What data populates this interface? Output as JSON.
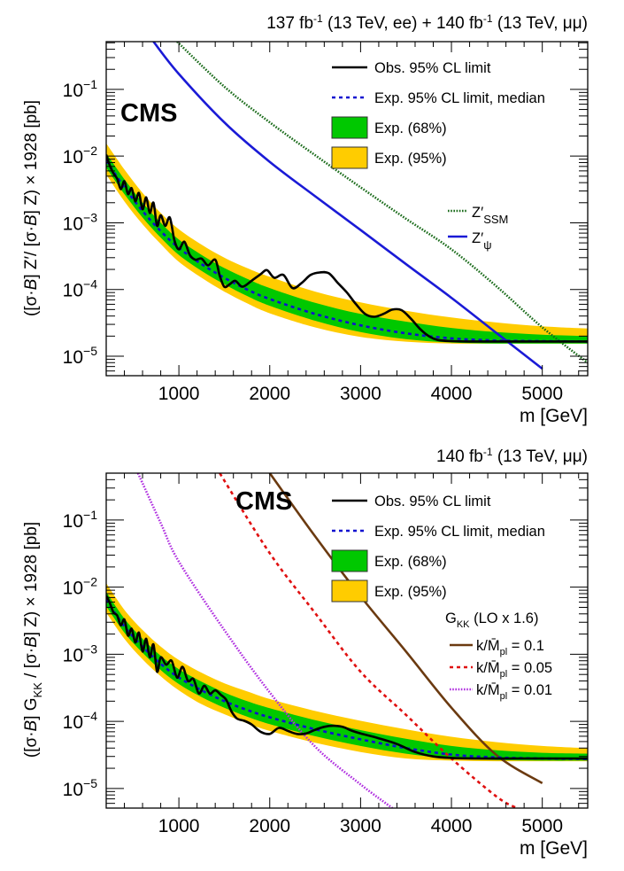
{
  "chart_data": [
    {
      "type": "line",
      "experiment_label": "CMS",
      "title": "137 fb-1 (13 TeV, ee) + 140 fb-1 (13 TeV, μμ)",
      "title_parts": {
        "a": "137 fb",
        "a_sup": "-1",
        "b": " (13 TeV, ee) + 140 fb",
        "b_sup": "-1",
        "c": " (13 TeV, μμ)"
      },
      "xlabel": "m [GeV]",
      "ylabel": "([σ·B] Z′/ [σ·B] Z) × 1928 [pb]",
      "xlim": [
        200,
        5500
      ],
      "ylim": [
        5.1e-06,
        0.52
      ],
      "yscale": "log",
      "xticks": [
        1000,
        2000,
        3000,
        4000,
        5000
      ],
      "xtick_labels": [
        "1000",
        "2000",
        "3000",
        "4000",
        "5000"
      ],
      "yticks": [
        1e-05,
        0.0001,
        0.001,
        0.01,
        0.1
      ],
      "ytick_labels": [
        {
          "base": "10",
          "exp": "−5"
        },
        {
          "base": "10",
          "exp": "−4"
        },
        {
          "base": "10",
          "exp": "−3"
        },
        {
          "base": "10",
          "exp": "−2"
        },
        {
          "base": "10",
          "exp": "−1"
        }
      ],
      "legend": [
        {
          "label": "Obs. 95% CL limit",
          "style": "solid",
          "color": "#000000"
        },
        {
          "label": "Exp. 95% CL limit, median",
          "style": "dashed",
          "color": "#1010d0"
        },
        {
          "label": "Exp. (68%)",
          "style": "box",
          "color": "#00c800"
        },
        {
          "label": "Exp. (95%)",
          "style": "box",
          "color": "#ffcc00"
        }
      ],
      "model_legend": [
        {
          "label": "Z′",
          "sub": "SSM",
          "style": "dotted",
          "color": "#1a6b1a"
        },
        {
          "label": "Z′",
          "sub": "ψ",
          "style": "solid",
          "color": "#1a1ad6"
        }
      ],
      "expected": {
        "x": [
          200,
          400,
          600,
          800,
          1000,
          1250,
          1500,
          1750,
          2000,
          2500,
          3000,
          3500,
          4000,
          4500,
          5000,
          5500
        ],
        "median": [
          0.0085,
          0.0034,
          0.0015,
          0.00075,
          0.00042,
          0.00024,
          0.00015,
          0.0001,
          7.2e-05,
          4.3e-05,
          2.9e-05,
          2.2e-05,
          1.85e-05,
          1.72e-05,
          1.68e-05,
          1.66e-05
        ],
        "band68_lo": [
          0.0067,
          0.0027,
          0.0012,
          0.0006,
          0.00033,
          0.00019,
          0.00012,
          8e-05,
          5.7e-05,
          3.4e-05,
          2.3e-05,
          1.8e-05,
          1.6e-05,
          1.55e-05,
          1.55e-05,
          1.55e-05
        ],
        "band68_hi": [
          0.011,
          0.0045,
          0.002,
          0.001,
          0.00056,
          0.00033,
          0.00021,
          0.000145,
          0.000105,
          6.3e-05,
          4.3e-05,
          3.3e-05,
          2.65e-05,
          2.3e-05,
          2.1e-05,
          2e-05
        ],
        "band95_lo": [
          0.0053,
          0.0021,
          0.00095,
          0.00048,
          0.00026,
          0.00015,
          9.3e-05,
          6.2e-05,
          4.4e-05,
          2.7e-05,
          1.95e-05,
          1.65e-05,
          1.55e-05,
          1.55e-05,
          1.55e-05,
          1.55e-05
        ],
        "band95_hi": [
          0.0155,
          0.0063,
          0.0028,
          0.0014,
          0.0008,
          0.00047,
          0.0003,
          0.00021,
          0.000155,
          9.3e-05,
          6.4e-05,
          4.8e-05,
          3.8e-05,
          3.2e-05,
          2.8e-05,
          2.6e-05
        ]
      },
      "observed": {
        "x": [
          200,
          240,
          280,
          320,
          360,
          400,
          440,
          480,
          520,
          560,
          600,
          640,
          680,
          720,
          760,
          800,
          850,
          900,
          950,
          1000,
          1060,
          1120,
          1180,
          1250,
          1320,
          1400,
          1450,
          1500,
          1560,
          1620,
          1700,
          1800,
          1900,
          1970,
          2050,
          2150,
          2250,
          2350,
          2450,
          2550,
          2650,
          2750,
          2850,
          2950,
          3050,
          3150,
          3250,
          3350,
          3450,
          3550,
          3650,
          3750,
          3850,
          4000,
          4200,
          4500,
          5000,
          5500
        ],
        "y": [
          0.0105,
          0.0072,
          0.0055,
          0.0046,
          0.0032,
          0.0042,
          0.0027,
          0.0033,
          0.0021,
          0.0028,
          0.0016,
          0.0024,
          0.0014,
          0.002,
          0.0009,
          0.0013,
          0.0009,
          0.0012,
          0.00055,
          0.0004,
          0.00052,
          0.00033,
          0.00028,
          0.00029,
          0.00023,
          0.00028,
          0.00016,
          0.00011,
          0.00012,
          0.000135,
          0.00011,
          0.000135,
          0.00017,
          0.000195,
          0.00015,
          0.000165,
          0.000105,
          0.000125,
          0.000165,
          0.00018,
          0.000175,
          0.000125,
          9e-05,
          6e-05,
          4.3e-05,
          3.9e-05,
          4.3e-05,
          5e-05,
          4.9e-05,
          3.7e-05,
          2.6e-05,
          2e-05,
          1.75e-05,
          1.68e-05,
          1.66e-05,
          1.66e-05,
          1.66e-05,
          1.66e-05
        ]
      },
      "models": [
        {
          "name": "Z′_SSM",
          "color": "#1a6b1a",
          "style": "dotted",
          "x": [
            980,
            1500,
            2000,
            2500,
            3000,
            3500,
            4000,
            4500,
            5000,
            5500
          ],
          "y": [
            0.52,
            0.11,
            0.032,
            0.0103,
            0.0034,
            0.00115,
            0.0004,
            0.00011,
            2.7e-05,
            8e-06
          ]
        },
        {
          "name": "Z′_ψ",
          "color": "#1a1ad6",
          "style": "solid",
          "x": [
            720,
            1000,
            1500,
            2000,
            2500,
            3000,
            3500,
            4000,
            4500,
            5000
          ],
          "y": [
            0.52,
            0.17,
            0.032,
            0.0082,
            0.0025,
            0.00078,
            0.00024,
            7.5e-05,
            2.2e-05,
            6.5e-06
          ]
        }
      ]
    },
    {
      "type": "line",
      "experiment_label": "CMS",
      "title": "140 fb-1 (13 TeV, μμ)",
      "title_parts": {
        "a": "140 fb",
        "a_sup": "-1",
        "b": " (13 TeV, μμ)"
      },
      "xlabel": "m [GeV]",
      "ylabel": "([σ·B] G_KK / [σ·B] Z) × 1928 [pb]",
      "xlim": [
        200,
        5500
      ],
      "ylim": [
        5.1e-06,
        0.5
      ],
      "yscale": "log",
      "xticks": [
        1000,
        2000,
        3000,
        4000,
        5000
      ],
      "xtick_labels": [
        "1000",
        "2000",
        "3000",
        "4000",
        "5000"
      ],
      "yticks": [
        1e-05,
        0.0001,
        0.001,
        0.01,
        0.1
      ],
      "ytick_labels": [
        {
          "base": "10",
          "exp": "−5"
        },
        {
          "base": "10",
          "exp": "−4"
        },
        {
          "base": "10",
          "exp": "−3"
        },
        {
          "base": "10",
          "exp": "−2"
        },
        {
          "base": "10",
          "exp": "−1"
        }
      ],
      "legend": [
        {
          "label": "Obs. 95% CL limit",
          "style": "solid",
          "color": "#000000"
        },
        {
          "label": "Exp. 95% CL limit, median",
          "style": "dashed",
          "color": "#1010d0"
        },
        {
          "label": "Exp. (68%)",
          "style": "box",
          "color": "#00c800"
        },
        {
          "label": "Exp. (95%)",
          "style": "box",
          "color": "#ffcc00"
        }
      ],
      "model_legend_header": {
        "label": "G",
        "sub": "KK",
        "rest": " (LO x 1.6)"
      },
      "model_legend": [
        {
          "label": "k/M̄",
          "sub": "pl",
          "value": " = 0.1",
          "style": "solid",
          "color": "#6b3a10"
        },
        {
          "label": "k/M̄",
          "sub": "pl",
          "value": " = 0.05",
          "style": "dashed",
          "color": "#e01010"
        },
        {
          "label": "k/M̄",
          "sub": "pl",
          "value": " = 0.01",
          "style": "dotted",
          "color": "#b030e0"
        }
      ],
      "expected": {
        "x": [
          200,
          400,
          600,
          800,
          1000,
          1250,
          1500,
          1750,
          2000,
          2500,
          3000,
          3500,
          4000,
          4500,
          5000,
          5500
        ],
        "median": [
          0.0065,
          0.0026,
          0.0013,
          0.00072,
          0.00045,
          0.00029,
          0.0002,
          0.000148,
          0.000115,
          7.6e-05,
          5.4e-05,
          4e-05,
          3.2e-05,
          2.9e-05,
          2.8e-05,
          2.75e-05
        ],
        "band68_lo": [
          0.0052,
          0.0021,
          0.00105,
          0.00058,
          0.00036,
          0.00023,
          0.00016,
          0.000118,
          9.1e-05,
          6e-05,
          4.3e-05,
          3.3e-05,
          2.8e-05,
          2.65e-05,
          2.6e-05,
          2.6e-05
        ],
        "band68_hi": [
          0.0085,
          0.0034,
          0.0017,
          0.00095,
          0.0006,
          0.00039,
          0.00027,
          0.0002,
          0.000157,
          0.000104,
          7.4e-05,
          5.5e-05,
          4.3e-05,
          3.7e-05,
          3.4e-05,
          3.3e-05
        ],
        "band95_lo": [
          0.0042,
          0.0017,
          0.00084,
          0.00047,
          0.00029,
          0.00018,
          0.000128,
          9.4e-05,
          7.2e-05,
          4.8e-05,
          3.5e-05,
          2.8e-05,
          2.6e-05,
          2.55e-05,
          2.55e-05,
          2.55e-05
        ],
        "band95_hi": [
          0.0115,
          0.0046,
          0.0023,
          0.0013,
          0.00082,
          0.00053,
          0.00037,
          0.00028,
          0.000215,
          0.000143,
          0.000102,
          7.6e-05,
          5.9e-05,
          4.9e-05,
          4.3e-05,
          4e-05
        ]
      },
      "observed": {
        "x": [
          200,
          240,
          280,
          320,
          360,
          400,
          440,
          480,
          520,
          560,
          600,
          640,
          680,
          720,
          760,
          800,
          860,
          920,
          980,
          1040,
          1100,
          1160,
          1220,
          1280,
          1340,
          1400,
          1460,
          1520,
          1580,
          1640,
          1720,
          1800,
          1900,
          2000,
          2100,
          2200,
          2300,
          2400,
          2500,
          2600,
          2700,
          2800,
          2900,
          3000,
          3200,
          3400,
          3600,
          3800,
          4000,
          4300,
          4700,
          5000,
          5500
        ],
        "y": [
          0.0075,
          0.0058,
          0.0042,
          0.0038,
          0.0027,
          0.0033,
          0.0019,
          0.0024,
          0.0015,
          0.0021,
          0.0011,
          0.0017,
          0.0009,
          0.0014,
          0.00055,
          0.0009,
          0.0007,
          0.0008,
          0.00045,
          0.00065,
          0.0004,
          0.00043,
          0.00026,
          0.00034,
          0.00026,
          0.00029,
          0.00025,
          0.00021,
          0.00014,
          0.00011,
          0.000102,
          9e-05,
          7e-05,
          6.5e-05,
          8e-05,
          7.2e-05,
          6.5e-05,
          6.6e-05,
          7.5e-05,
          8.3e-05,
          8.6e-05,
          8.3e-05,
          7.3e-05,
          6.6e-05,
          5.6e-05,
          4.6e-05,
          3.5e-05,
          3e-05,
          2.85e-05,
          2.8e-05,
          2.8e-05,
          2.8e-05,
          2.8e-05
        ]
      },
      "models": [
        {
          "name": "k/M̄pl = 0.1",
          "color": "#6b3a10",
          "style": "solid",
          "x": [
            2000,
            2500,
            3000,
            3500,
            4000,
            4500,
            5000
          ],
          "y": [
            0.5,
            0.057,
            0.0073,
            0.0011,
            0.00016,
            3.1e-05,
            1.2e-05
          ]
        },
        {
          "name": "k/M̄pl = 0.05",
          "color": "#e01010",
          "style": "dashed",
          "x": [
            1450,
            2000,
            2500,
            3000,
            3500,
            4000,
            4500,
            4720
          ],
          "y": [
            0.5,
            0.032,
            0.0041,
            0.00055,
            0.000125,
            2.8e-05,
            7.5e-06,
            5.1e-06
          ]
        },
        {
          "name": "k/M̄pl = 0.01",
          "color": "#b030e0",
          "style": "dotted",
          "x": [
            550,
            800,
            1000,
            1500,
            2000,
            2500,
            3000,
            3350
          ],
          "y": [
            0.5,
            0.09,
            0.024,
            0.0023,
            0.00027,
            4.2e-05,
            1.15e-05,
            5.1e-06
          ]
        }
      ]
    }
  ]
}
